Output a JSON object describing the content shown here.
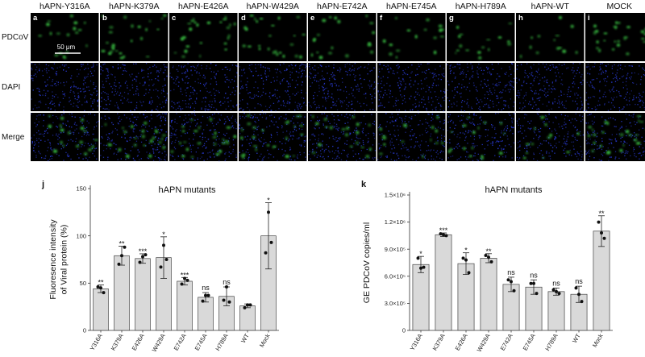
{
  "microscopy": {
    "columns": [
      {
        "letter": "a",
        "label": "hAPN-Y316A",
        "green": 0.55
      },
      {
        "letter": "b",
        "label": "hAPN-K379A",
        "green": 0.9
      },
      {
        "letter": "c",
        "label": "hAPN-E426A",
        "green": 0.85
      },
      {
        "letter": "d",
        "label": "hAPN-W429A",
        "green": 0.85
      },
      {
        "letter": "e",
        "label": "hAPN-E742A",
        "green": 0.6
      },
      {
        "letter": "f",
        "label": "hAPN-E745A",
        "green": 0.45
      },
      {
        "letter": "g",
        "label": "hAPN-H789A",
        "green": 0.45
      },
      {
        "letter": "h",
        "label": "hAPN-WT",
        "green": 0.3
      },
      {
        "letter": "i",
        "label": "MOCK",
        "green": 1.0
      }
    ],
    "rows": [
      "PDCoV",
      "DAPI",
      "Merge"
    ],
    "scale_bar": "50 μm",
    "colors": {
      "green": "#3fd24a",
      "blue": "#2a3bd6"
    }
  },
  "chart_data": [
    {
      "letter": "j",
      "type": "bar",
      "title": "hAPN mutants",
      "ylabel": "Fluoresence intensity of Viral protein (%)",
      "ylabel_lines": [
        "Fluoresence intensity",
        "of Viral protein (%)"
      ],
      "ylim": [
        0,
        150
      ],
      "yticks": [
        "0",
        "50",
        "100",
        "150"
      ],
      "ytick_values": [
        0,
        50,
        100,
        150
      ],
      "categories": [
        "Y316A",
        "K379A",
        "E426A",
        "W429A",
        "E742A",
        "E745A",
        "H789A",
        "WT",
        "Mock"
      ],
      "values": [
        44,
        79,
        76,
        77,
        52,
        35,
        36,
        26,
        100
      ],
      "errors": [
        4,
        10,
        5,
        22,
        4,
        5,
        10,
        2,
        35
      ],
      "points": [
        [
          46,
          45,
          40
        ],
        [
          70,
          79,
          88
        ],
        [
          72,
          78,
          80
        ],
        [
          67,
          90,
          75
        ],
        [
          49,
          55,
          53
        ],
        [
          31,
          37,
          37
        ],
        [
          32,
          46,
          30
        ],
        [
          24,
          27,
          27
        ],
        [
          82,
          125,
          93
        ]
      ],
      "significance": [
        "**",
        "**",
        "***",
        "*",
        "***",
        "ns",
        "ns",
        "",
        "*"
      ],
      "bar_color": "#d9d9d9"
    },
    {
      "letter": "k",
      "type": "bar",
      "title": "hAPN mutants",
      "ylabel": "GE PDCoV copies/ml",
      "ylim": [
        0,
        1500000
      ],
      "yticks": [
        "0",
        "3.0×10⁵",
        "6.0×10⁵",
        "9.0×10⁵",
        "1.2×10⁶",
        "1.5×10⁶"
      ],
      "ytick_values": [
        0,
        300000,
        600000,
        900000,
        1200000,
        1500000
      ],
      "categories": [
        "Y316A",
        "K379A",
        "E426A",
        "W429A",
        "E742A",
        "E745A",
        "H789A",
        "WT",
        "Mock"
      ],
      "values": [
        730000,
        1060000,
        740000,
        800000,
        510000,
        480000,
        430000,
        400000,
        1100000
      ],
      "errors": [
        90000,
        20000,
        120000,
        50000,
        80000,
        80000,
        40000,
        90000,
        170000
      ],
      "points": [
        [
          800000,
          690000,
          700000
        ],
        [
          1070000,
          1060000,
          1050000
        ],
        [
          800000,
          780000,
          640000
        ],
        [
          830000,
          810000,
          760000
        ],
        [
          560000,
          540000,
          440000
        ],
        [
          520000,
          520000,
          410000
        ],
        [
          450000,
          430000,
          410000
        ],
        [
          470000,
          400000,
          320000
        ],
        [
          1200000,
          1080000,
          1020000
        ]
      ],
      "significance": [
        "*",
        "***",
        "*",
        "**",
        "ns",
        "ns",
        "ns",
        "ns",
        "**"
      ],
      "bar_color": "#d9d9d9"
    }
  ]
}
